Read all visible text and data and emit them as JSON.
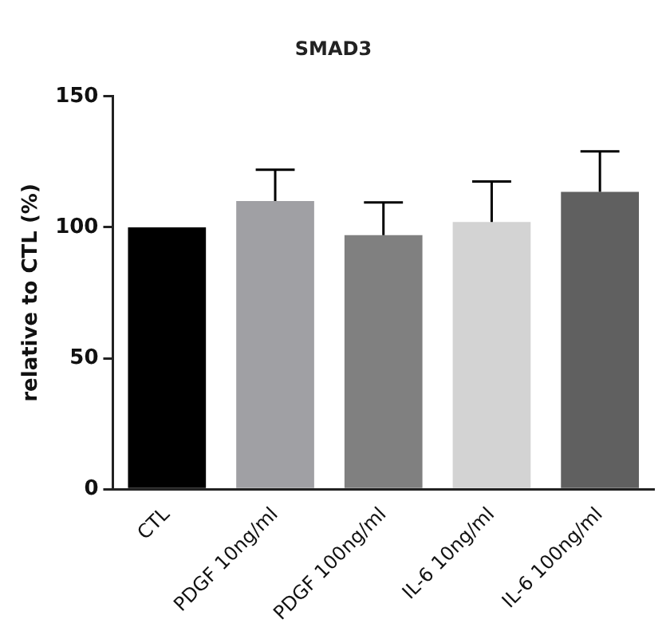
{
  "chart_data": {
    "type": "bar",
    "title": "SMAD3",
    "ylabel": "relative to CTL (%)",
    "categories": [
      "CTL",
      "PDGF 10ng/ml",
      "PDGF 100ng/ml",
      "IL-6 10ng/ml",
      "IL-6 100ng/ml"
    ],
    "values": [
      100,
      110,
      97,
      102,
      113.5
    ],
    "errors": [
      null,
      [
        110,
        122
      ],
      [
        97,
        109.5
      ],
      [
        102,
        117.5
      ],
      [
        113.5,
        129
      ]
    ],
    "colors": [
      "#000000",
      "#a0a0a4",
      "#808080",
      "#d3d3d3",
      "#606060"
    ],
    "ylim": [
      0,
      150
    ],
    "yticks": [
      0,
      50,
      100,
      150
    ],
    "grid": false,
    "legend": false
  }
}
